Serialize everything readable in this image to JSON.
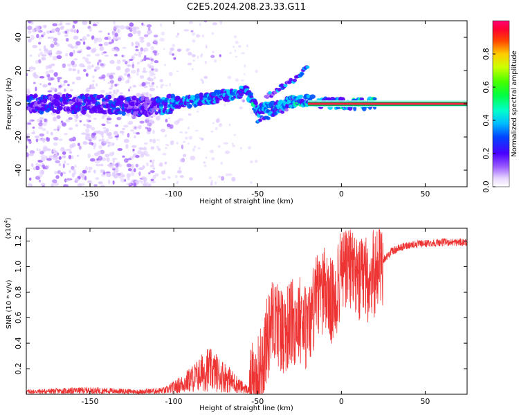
{
  "title": "C2E5.2024.208.23.33.G11",
  "chart_data": [
    {
      "type": "heatmap",
      "name": "spectrogram",
      "xlabel": "Height of straight line (km)",
      "ylabel": "Frequency (Hz)",
      "xlim": [
        -188,
        75
      ],
      "ylim": [
        -50,
        50
      ],
      "xticks": [
        -150,
        -100,
        -50,
        0,
        50
      ],
      "yticks": [
        -40,
        -20,
        0,
        20,
        40
      ],
      "colorbar": {
        "label": "Normalized spectral amplitude",
        "range": [
          0.0,
          1.0
        ],
        "ticks": [
          0.0,
          0.2,
          0.4,
          0.6,
          0.8
        ]
      },
      "ridge": {
        "description_points": [
          {
            "x": -185,
            "y": 0
          },
          {
            "x": -150,
            "y": 0
          },
          {
            "x": -115,
            "y": -2
          },
          {
            "x": -100,
            "y": 0
          },
          {
            "x": -80,
            "y": 3
          },
          {
            "x": -65,
            "y": 6
          },
          {
            "x": -57,
            "y": 8
          },
          {
            "x": -50,
            "y": -4
          },
          {
            "x": -40,
            "y": -2
          },
          {
            "x": -30,
            "y": 1
          },
          {
            "x": -20,
            "y": 2
          },
          {
            "x": -10,
            "y": 0
          },
          {
            "x": 0,
            "y": 0
          },
          {
            "x": 10,
            "y": 0
          },
          {
            "x": 20,
            "y": 0
          },
          {
            "x": 75,
            "y": 0
          }
        ],
        "upper_branch": [
          {
            "x": -45,
            "y": 4
          },
          {
            "x": -35,
            "y": 10
          },
          {
            "x": -25,
            "y": 17
          },
          {
            "x": -20,
            "y": 22
          }
        ],
        "lower_branch": [
          {
            "x": -50,
            "y": -10
          },
          {
            "x": -40,
            "y": -6
          },
          {
            "x": -30,
            "y": -2
          }
        ]
      }
    },
    {
      "type": "line",
      "name": "snr",
      "xlabel": "Height of straight line (km)",
      "ylabel": "SNR (10 * v/v)",
      "y_scale_label": "(x10",
      "y_scale_exp": "4",
      "y_scale_close": ")",
      "xlim": [
        -188,
        75
      ],
      "ylim": [
        0,
        1.3
      ],
      "xticks": [
        -150,
        -100,
        -50,
        0,
        50
      ],
      "yticks": [
        0.2,
        0.4,
        0.6,
        0.8,
        1.0,
        1.2
      ],
      "color": "#ee3333",
      "series": [
        {
          "name": "SNR",
          "x": [
            -188,
            -150,
            -120,
            -105,
            -95,
            -85,
            -80,
            -70,
            -60,
            -55,
            -50,
            -45,
            -40,
            -35,
            -30,
            -25,
            -20,
            -15,
            -10,
            -5,
            0,
            5,
            10,
            15,
            20,
            25,
            30,
            40,
            50,
            60,
            75
          ],
          "y": [
            0.02,
            0.03,
            0.02,
            0.03,
            0.08,
            0.15,
            0.2,
            0.14,
            0.06,
            0.03,
            0.1,
            0.4,
            0.6,
            0.5,
            0.55,
            0.6,
            0.5,
            0.75,
            0.8,
            0.7,
            0.95,
            1.0,
            0.85,
            0.9,
            0.95,
            1.05,
            1.12,
            1.17,
            1.18,
            1.19,
            1.19
          ]
        }
      ]
    }
  ]
}
